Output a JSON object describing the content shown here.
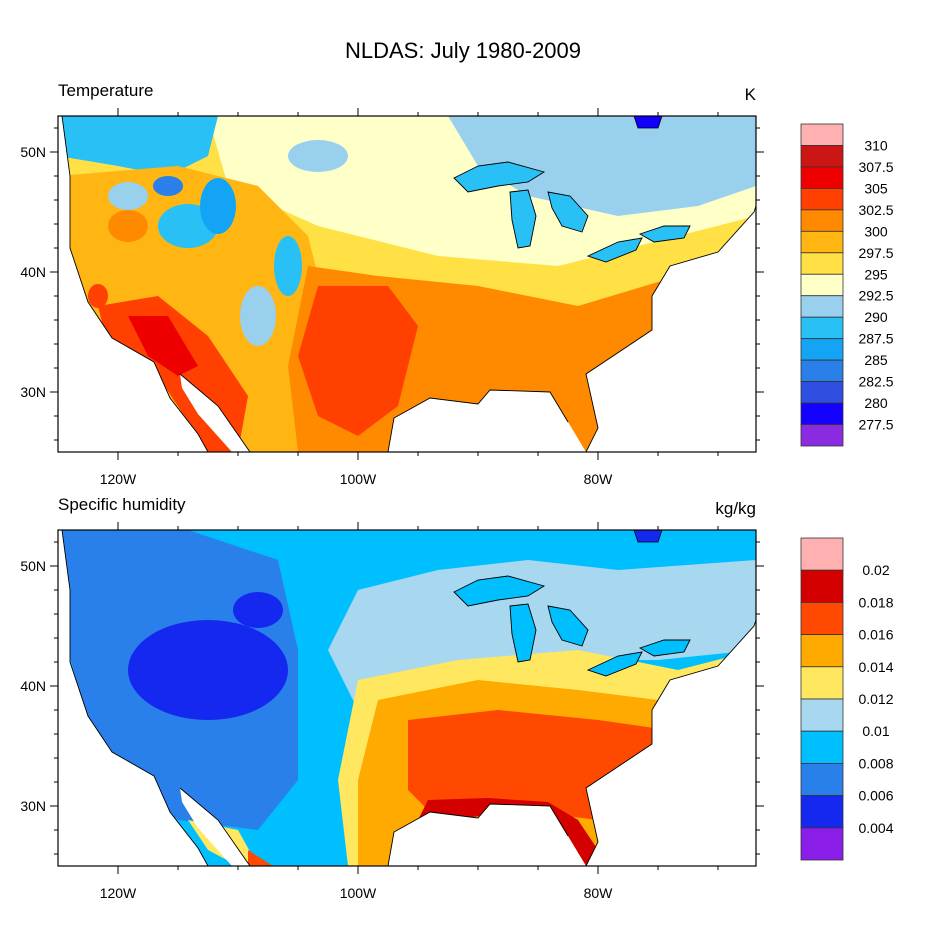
{
  "title": "NLDAS: July 1980-2009",
  "panels": [
    {
      "left_string": "Temperature",
      "right_string": "K",
      "lat_labels": [
        "50N",
        "40N",
        "30N"
      ],
      "lon_labels": [
        "120W",
        "100W",
        "80W"
      ],
      "colorbar": {
        "levels": [
          "277.5",
          "280",
          "282.5",
          "285",
          "287.5",
          "290",
          "292.5",
          "295",
          "297.5",
          "300",
          "302.5",
          "305",
          "307.5",
          "310"
        ],
        "colors": [
          "#8a2be2",
          "#1400ff",
          "#2e4fe0",
          "#2a7fe8",
          "#13a4f5",
          "#28c0f5",
          "#98d0ee",
          "#ffffc8",
          "#ffe045",
          "#ffb612",
          "#ff8a00",
          "#ff4000",
          "#ee0000",
          "#cc1515",
          "#ffb0b0"
        ]
      }
    },
    {
      "left_string": "Specific humidity",
      "right_string": "kg/kg",
      "lat_labels": [
        "50N",
        "40N",
        "30N"
      ],
      "lon_labels": [
        "120W",
        "100W",
        "80W"
      ],
      "colorbar": {
        "levels": [
          "0.004",
          "0.006",
          "0.008",
          "0.01",
          "0.012",
          "0.014",
          "0.016",
          "0.018",
          "0.02"
        ],
        "colors": [
          "#8a1ee8",
          "#1428f0",
          "#2a80ea",
          "#00bfff",
          "#a8d8f0",
          "#ffe860",
          "#ffaa00",
          "#ff4800",
          "#d40000",
          "#ffb0b0"
        ]
      }
    }
  ]
}
